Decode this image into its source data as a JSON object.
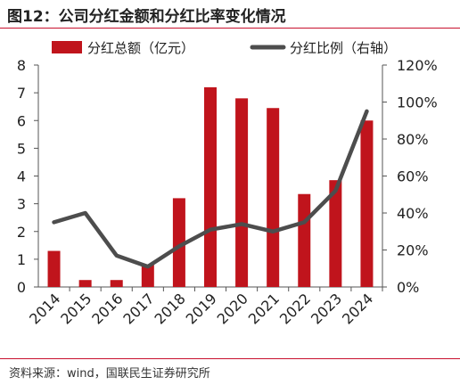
{
  "figure": {
    "title": "图12：公司分红金额和分红比率变化情况",
    "source": "资料来源：wind，国联民生证券研究所"
  },
  "chart_data": {
    "type": "bar",
    "categories": [
      "2014",
      "2015",
      "2016",
      "2017",
      "2018",
      "2019",
      "2020",
      "2021",
      "2022",
      "2023",
      "2024"
    ],
    "series": [
      {
        "name": "分红总额（亿元）",
        "type": "bar",
        "axis": "left",
        "color": "#c0141c",
        "values": [
          1.3,
          0.25,
          0.25,
          0.8,
          3.2,
          7.2,
          6.8,
          6.45,
          3.35,
          3.85,
          6.0
        ]
      },
      {
        "name": "分红比例（右轴）",
        "type": "line",
        "axis": "right",
        "color": "#4d4d4d",
        "values": [
          35,
          40,
          17,
          11,
          22,
          31,
          34,
          30,
          35,
          52,
          95
        ]
      }
    ],
    "ylim": [
      0,
      8
    ],
    "yticks": [
      "0",
      "1",
      "2",
      "3",
      "4",
      "5",
      "6",
      "7",
      "8"
    ],
    "y2lim": [
      0,
      120
    ],
    "y2ticks": [
      "0%",
      "20%",
      "40%",
      "60%",
      "80%",
      "100%",
      "120%"
    ],
    "xlabel": "",
    "ylabel": "",
    "grid": false,
    "legend": "top"
  }
}
